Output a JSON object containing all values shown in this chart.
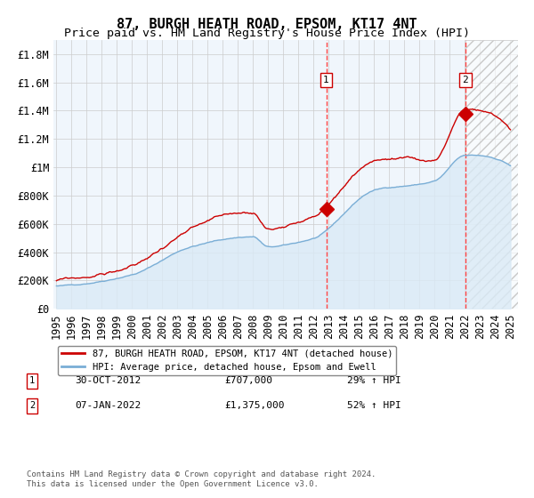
{
  "title": "87, BURGH HEATH ROAD, EPSOM, KT17 4NT",
  "subtitle": "Price paid vs. HM Land Registry's House Price Index (HPI)",
  "xlabel": "",
  "ylabel": "",
  "ylim": [
    0,
    1900000
  ],
  "yticks": [
    0,
    200000,
    400000,
    600000,
    800000,
    1000000,
    1200000,
    1400000,
    1600000,
    1800000
  ],
  "ytick_labels": [
    "£0",
    "£200K",
    "£400K",
    "£600K",
    "£800K",
    "£1M",
    "£1.2M",
    "£1.4M",
    "£1.6M",
    "£1.8M"
  ],
  "year_start": 1995,
  "year_end": 2025,
  "transaction1_date": 2012.83,
  "transaction1_price": 707000,
  "transaction1_label": "1",
  "transaction2_date": 2022.02,
  "transaction2_price": 1375000,
  "transaction2_label": "2",
  "line_red_color": "#cc0000",
  "line_blue_color": "#7aaed6",
  "fill_blue_color": "#daeaf6",
  "hatch_color": "#c0c0c0",
  "grid_color": "#cccccc",
  "background_color": "#ffffff",
  "plot_bg_color": "#f0f6fc",
  "dashed_line_color": "#ff4444",
  "legend1_label": "87, BURGH HEATH ROAD, EPSOM, KT17 4NT (detached house)",
  "legend2_label": "HPI: Average price, detached house, Epsom and Ewell",
  "annotation1_date": "30-OCT-2012",
  "annotation1_price": "£707,000",
  "annotation1_pct": "29% ↑ HPI",
  "annotation2_date": "07-JAN-2022",
  "annotation2_price": "£1,375,000",
  "annotation2_pct": "52% ↑ HPI",
  "footnote": "Contains HM Land Registry data © Crown copyright and database right 2024.\nThis data is licensed under the Open Government Licence v3.0.",
  "title_fontsize": 11,
  "subtitle_fontsize": 9.5,
  "tick_fontsize": 8.5
}
